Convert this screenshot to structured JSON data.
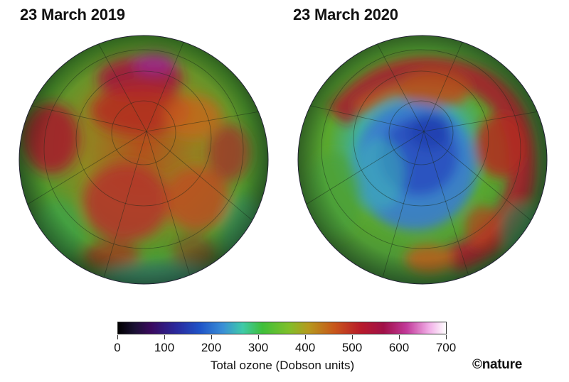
{
  "panels": [
    {
      "title": "23 March 2019"
    },
    {
      "title": "23 March 2020"
    }
  ],
  "colorbar": {
    "label": "Total ozone (Dobson units)",
    "ticks": [
      "0",
      "100",
      "200",
      "300",
      "400",
      "500",
      "600",
      "700"
    ],
    "colors": [
      "#000000",
      "#3a0a5e",
      "#1f54c8",
      "#3fbf3a",
      "#c8561a",
      "#b81a2a",
      "#c23a9a",
      "#ffffff"
    ]
  },
  "credit": "©nature"
}
